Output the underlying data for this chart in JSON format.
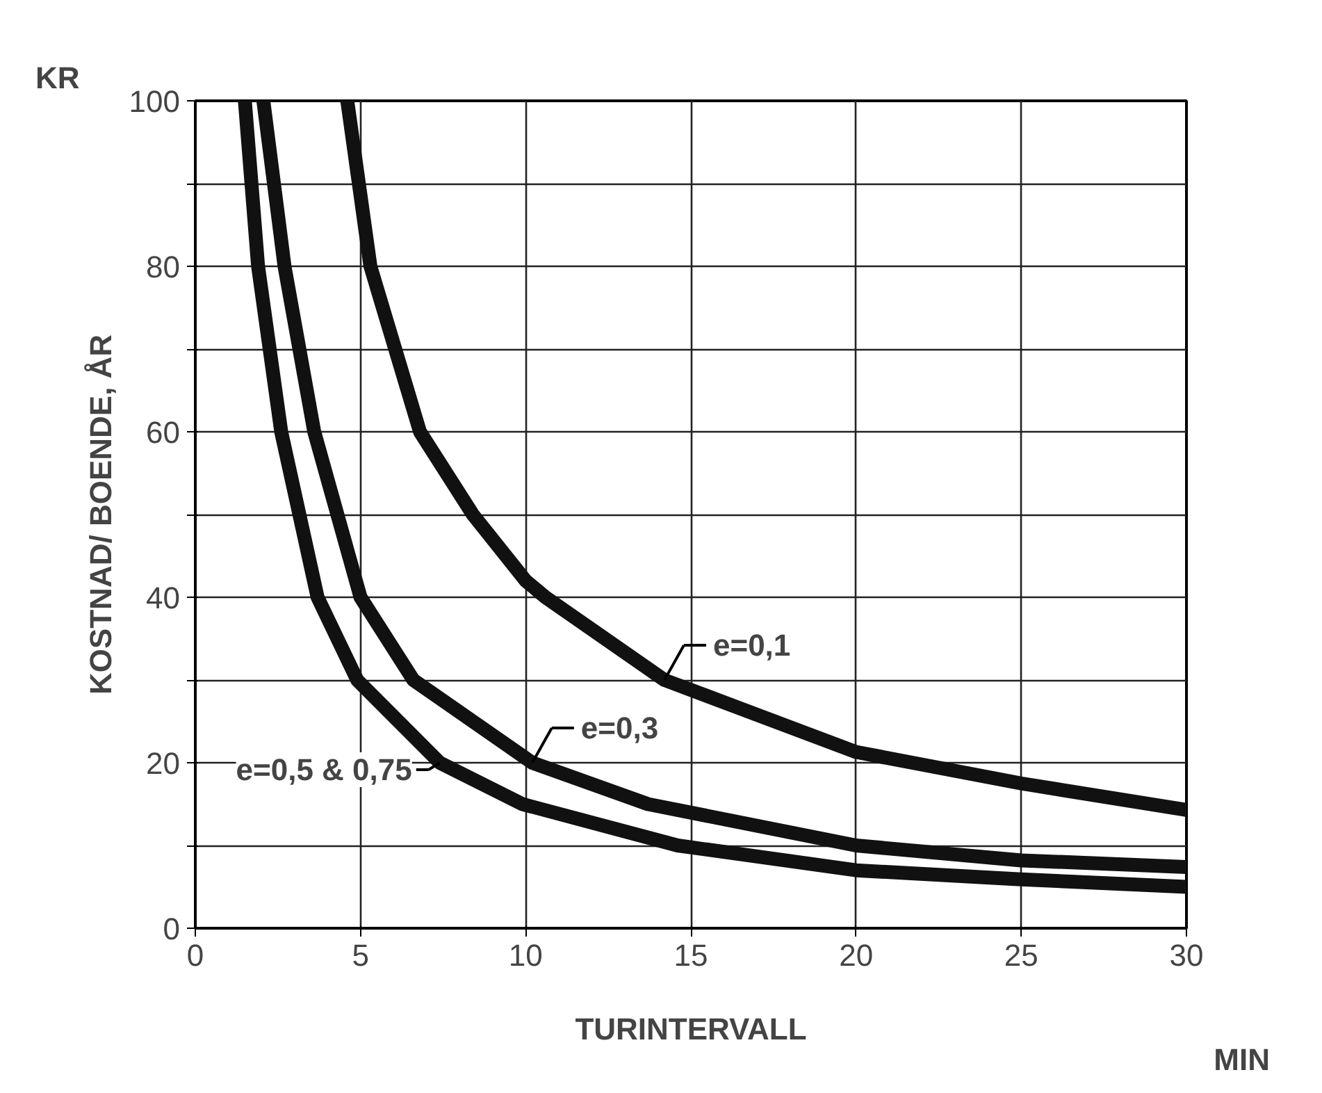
{
  "chart_data": {
    "type": "line",
    "xlabel": "TURINTERVALL",
    "ylabel": "KOSTNAD/ BOENDE, ÅR",
    "annotations": [
      "KR",
      "MIN"
    ],
    "xlim": [
      0,
      30
    ],
    "ylim": [
      0,
      100
    ],
    "xticks": [
      0,
      5,
      10,
      15,
      20,
      25,
      30
    ],
    "yticks": [
      0,
      {
        "value": 10,
        "label": null
      },
      20,
      {
        "value": 30,
        "label": null
      },
      40,
      {
        "value": 50,
        "label": null
      },
      60,
      {
        "value": 70,
        "label": null
      },
      80,
      {
        "value": 90,
        "label": null
      },
      100
    ],
    "grid": true,
    "legend": false,
    "line_style": "solid",
    "marker": "none",
    "series": [
      {
        "name": "e=0,1",
        "color": "#111111",
        "x": [
          4.6,
          5.3,
          6.8,
          8.4,
          10,
          10.6,
          14.2,
          20,
          25,
          30
        ],
        "values": [
          100,
          80,
          60,
          50,
          42,
          40,
          30,
          21.3,
          17.5,
          14.3
        ]
      },
      {
        "name": "e=0,3",
        "color": "#111111",
        "x": [
          2.06,
          2.7,
          3.6,
          5,
          6.6,
          10.2,
          13.7,
          20,
          25,
          30
        ],
        "values": [
          100,
          80,
          60,
          40,
          30,
          20,
          15,
          10,
          8.2,
          7.4
        ]
      },
      {
        "name": "e=0,5 & 0,75",
        "color": "#111111",
        "x": [
          1.5,
          1.9,
          2.6,
          3.7,
          4.9,
          7.4,
          9.9,
          14.6,
          20,
          25,
          30
        ],
        "values": [
          100,
          80,
          60,
          40,
          30,
          20,
          15,
          10,
          7,
          5.9,
          5
        ]
      }
    ]
  }
}
